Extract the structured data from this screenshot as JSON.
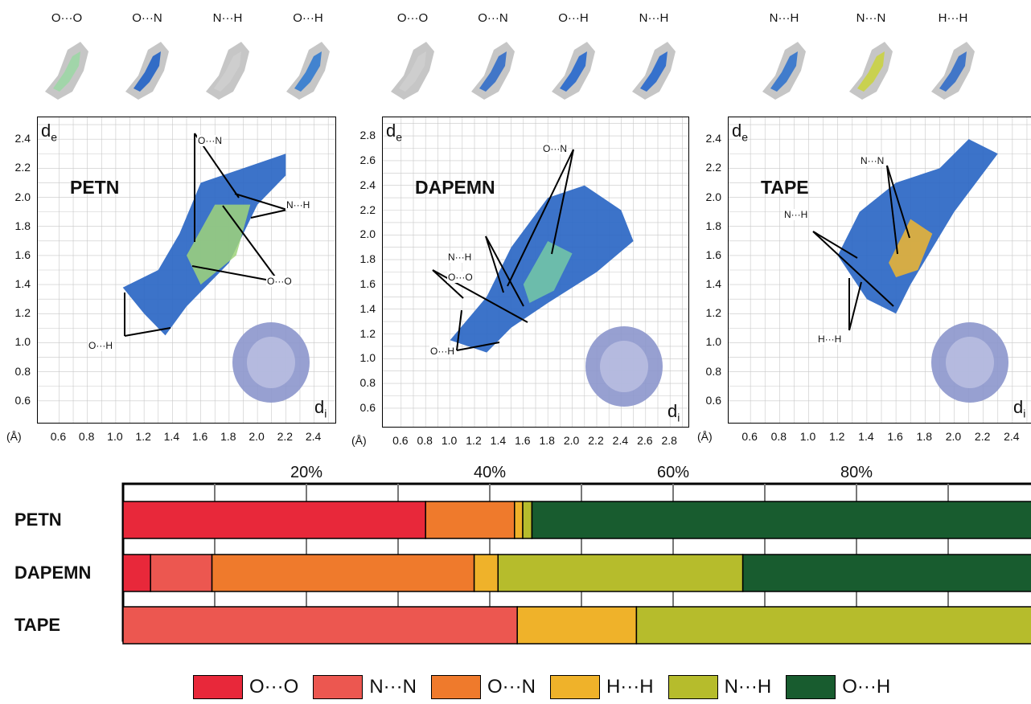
{
  "colors": {
    "O···O": "#e8283a",
    "N···N": "#ec5750",
    "O···N": "#ef7a2c",
    "H···H": "#efb22a",
    "N···H": "#b6bc2c",
    "O···H": "#185c2f"
  },
  "thumbnails": [
    {
      "group": 0,
      "labels": [
        "O···O",
        "O···N",
        "N···H",
        "O···H"
      ]
    },
    {
      "group": 1,
      "labels": [
        "O···O",
        "O···N",
        "O···H",
        "N···H"
      ]
    },
    {
      "group": 2,
      "labels": [
        "N···H",
        "N···N",
        "H···H"
      ]
    }
  ],
  "fingerprint_panels": [
    {
      "compound": "PETN",
      "de_axis": "d",
      "de_sub": "e",
      "di_axis": "d",
      "di_sub": "i",
      "unit": "(Å)",
      "y_ticks": [
        "2.4",
        "2.2",
        "2.0",
        "1.8",
        "1.6",
        "1.4",
        "1.2",
        "1.0",
        "0.8",
        "0.6"
      ],
      "x_ticks": [
        "0.6",
        "0.8",
        "1.0",
        "1.2",
        "1.4",
        "1.6",
        "1.8",
        "2.0",
        "2.2",
        "2.4"
      ],
      "annotations": [
        "O···N",
        "N···H",
        "O···O",
        "O···H"
      ]
    },
    {
      "compound": "DAPEMN",
      "de_axis": "d",
      "de_sub": "e",
      "di_axis": "d",
      "di_sub": "i",
      "unit": "(Å)",
      "y_ticks": [
        "2.8",
        "2.6",
        "2.4",
        "2.2",
        "2.0",
        "1.8",
        "1.6",
        "1.4",
        "1.2",
        "1.0",
        "0.8",
        "0.6"
      ],
      "x_ticks": [
        "0.6",
        "0.8",
        "1.0",
        "1.2",
        "1.4",
        "1.6",
        "1.8",
        "2.0",
        "2.2",
        "2.4",
        "2.6",
        "2.8"
      ],
      "annotations": [
        "O···N",
        "O···O",
        "N···H",
        "O···H"
      ]
    },
    {
      "compound": "TAPE",
      "de_axis": "d",
      "de_sub": "e",
      "di_axis": "d",
      "di_sub": "i",
      "unit": "(Å)",
      "y_ticks": [
        "2.4",
        "2.2",
        "2.0",
        "1.8",
        "1.6",
        "1.4",
        "1.2",
        "1.0",
        "0.8",
        "0.6"
      ],
      "x_ticks": [
        "0.6",
        "0.8",
        "1.0",
        "1.2",
        "1.4",
        "1.6",
        "1.8",
        "2.0",
        "2.2",
        "2.4"
      ],
      "annotations": [
        "N···N",
        "N···H",
        "H···H"
      ]
    }
  ],
  "chart_data": {
    "type": "bar",
    "orientation": "horizontal-stacked",
    "title": "",
    "xlabel": "",
    "ylabel": "",
    "x_ticks": [
      "20%",
      "40%",
      "60%",
      "80%"
    ],
    "xlim": [
      0,
      100
    ],
    "grid": true,
    "legend_position": "bottom",
    "categories": [
      "PETN",
      "DAPEMN",
      "TAPE"
    ],
    "series": [
      {
        "name": "O···O",
        "values": [
          33.0,
          3.0,
          0.0
        ]
      },
      {
        "name": "N···N",
        "values": [
          0.0,
          6.7,
          43.0
        ]
      },
      {
        "name": "O···N",
        "values": [
          9.7,
          28.6,
          0.0
        ]
      },
      {
        "name": "H···H",
        "values": [
          0.9,
          2.6,
          13.0
        ]
      },
      {
        "name": "N···H",
        "values": [
          1.0,
          26.7,
          44.0
        ]
      },
      {
        "name": "O···H",
        "values": [
          55.4,
          32.4,
          0.0
        ]
      }
    ]
  }
}
